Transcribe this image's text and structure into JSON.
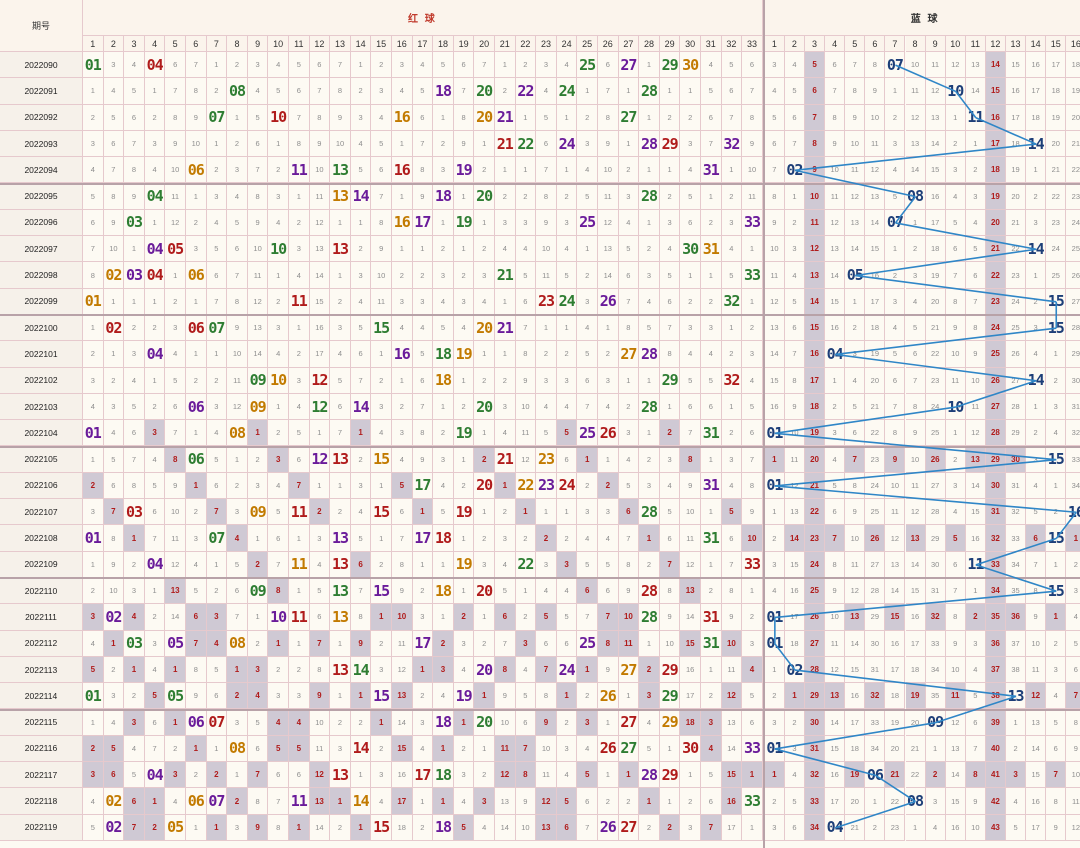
{
  "header": {
    "period_label": "期号",
    "red_label": "红 球",
    "blue_label": "蓝 球",
    "watermark": "头条@五月微月"
  },
  "colors": {
    "red_ball_palette": [
      "#b01b1b",
      "#2e7d32",
      "#c27a00",
      "#6a1b9a"
    ],
    "blue_ball": "#1d3e78",
    "trend_line": "#2f86c7",
    "shaded_cell": "#cfc9d4",
    "grid_line": "#e6c9cd"
  },
  "red_columns": [
    "1",
    "2",
    "3",
    "4",
    "5",
    "6",
    "7",
    "8",
    "9",
    "10",
    "11",
    "12",
    "13",
    "14",
    "15",
    "16",
    "17",
    "18",
    "19",
    "20",
    "21",
    "22",
    "23",
    "24",
    "25",
    "26",
    "27",
    "28",
    "29",
    "30",
    "31",
    "32",
    "33"
  ],
  "blue_columns": [
    "1",
    "2",
    "3",
    "4",
    "5",
    "6",
    "7",
    "8",
    "9",
    "10",
    "11",
    "12",
    "13",
    "14",
    "15",
    "16"
  ],
  "draws": [
    {
      "period": "2022090",
      "red": [
        "01",
        "04",
        "25",
        "27",
        "29",
        "30"
      ],
      "blue": "07"
    },
    {
      "period": "2022091",
      "red": [
        "08",
        "18",
        "20",
        "22",
        "24",
        "28"
      ],
      "blue": "10"
    },
    {
      "period": "2022092",
      "red": [
        "07",
        "10",
        "16",
        "20",
        "21",
        "27"
      ],
      "blue": "11"
    },
    {
      "period": "2022093",
      "red": [
        "21",
        "22",
        "24",
        "28",
        "29",
        "32"
      ],
      "blue": "14"
    },
    {
      "period": "2022094",
      "red": [
        "06",
        "11",
        "13",
        "16",
        "19",
        "31"
      ],
      "blue": "02"
    },
    {
      "period": "2022095",
      "red": [
        "04",
        "13",
        "14",
        "18",
        "20",
        "28"
      ],
      "blue": "08"
    },
    {
      "period": "2022096",
      "red": [
        "03",
        "16",
        "17",
        "19",
        "25",
        "33"
      ],
      "blue": "07"
    },
    {
      "period": "2022097",
      "red": [
        "04",
        "05",
        "10",
        "13",
        "30",
        "31"
      ],
      "blue": "14"
    },
    {
      "period": "2022098",
      "red": [
        "02",
        "03",
        "04",
        "06",
        "21",
        "33"
      ],
      "blue": "05"
    },
    {
      "period": "2022099",
      "red": [
        "01",
        "11",
        "23",
        "24",
        "26",
        "32"
      ],
      "blue": "15"
    },
    {
      "period": "2022100",
      "red": [
        "02",
        "06",
        "07",
        "15",
        "20",
        "21"
      ],
      "blue": "15"
    },
    {
      "period": "2022101",
      "red": [
        "04",
        "16",
        "18",
        "19",
        "27",
        "28"
      ],
      "blue": "04"
    },
    {
      "period": "2022102",
      "red": [
        "09",
        "10",
        "12",
        "18",
        "29",
        "32"
      ],
      "blue": "14"
    },
    {
      "period": "2022103",
      "red": [
        "06",
        "09",
        "12",
        "14",
        "20",
        "28"
      ],
      "blue": "10"
    },
    {
      "period": "2022104",
      "red": [
        "01",
        "08",
        "19",
        "25",
        "26",
        "31"
      ],
      "blue": "01"
    },
    {
      "period": "2022105",
      "red": [
        "06",
        "12",
        "13",
        "15",
        "21",
        "23"
      ],
      "blue": "15"
    },
    {
      "period": "2022106",
      "red": [
        "17",
        "20",
        "22",
        "23",
        "24",
        "31"
      ],
      "blue": "01"
    },
    {
      "period": "2022107",
      "red": [
        "03",
        "09",
        "11",
        "15",
        "19",
        "28"
      ],
      "blue": "16"
    },
    {
      "period": "2022108",
      "red": [
        "01",
        "07",
        "13",
        "17",
        "18",
        "31"
      ],
      "blue": "15"
    },
    {
      "period": "2022109",
      "red": [
        "04",
        "11",
        "13",
        "19",
        "22",
        "33"
      ],
      "blue": "11"
    },
    {
      "period": "2022110",
      "red": [
        "09",
        "13",
        "15",
        "18",
        "20",
        "28"
      ],
      "blue": "15"
    },
    {
      "period": "2022111",
      "red": [
        "02",
        "10",
        "11",
        "13",
        "28",
        "31"
      ],
      "blue": "01"
    },
    {
      "period": "2022112",
      "red": [
        "03",
        "05",
        "08",
        "17",
        "25",
        "31"
      ],
      "blue": "01"
    },
    {
      "period": "2022113",
      "red": [
        "13",
        "14",
        "20",
        "24",
        "27",
        "29"
      ],
      "blue": "02"
    },
    {
      "period": "2022114",
      "red": [
        "01",
        "05",
        "15",
        "19",
        "26",
        "29"
      ],
      "blue": "13"
    },
    {
      "period": "2022115",
      "red": [
        "06",
        "07",
        "18",
        "20",
        "27",
        "29"
      ],
      "blue": "09"
    },
    {
      "period": "2022116",
      "red": [
        "08",
        "14",
        "26",
        "27",
        "30",
        "33"
      ],
      "blue": "01"
    },
    {
      "period": "2022117",
      "red": [
        "04",
        "13",
        "17",
        "18",
        "28",
        "29"
      ],
      "blue": "06"
    },
    {
      "period": "2022118",
      "red": [
        "02",
        "06",
        "07",
        "11",
        "14",
        "33"
      ],
      "blue": "08"
    },
    {
      "period": "2022119",
      "red": [
        "02",
        "05",
        "15",
        "18",
        "26",
        "27"
      ],
      "blue": "04"
    }
  ]
}
